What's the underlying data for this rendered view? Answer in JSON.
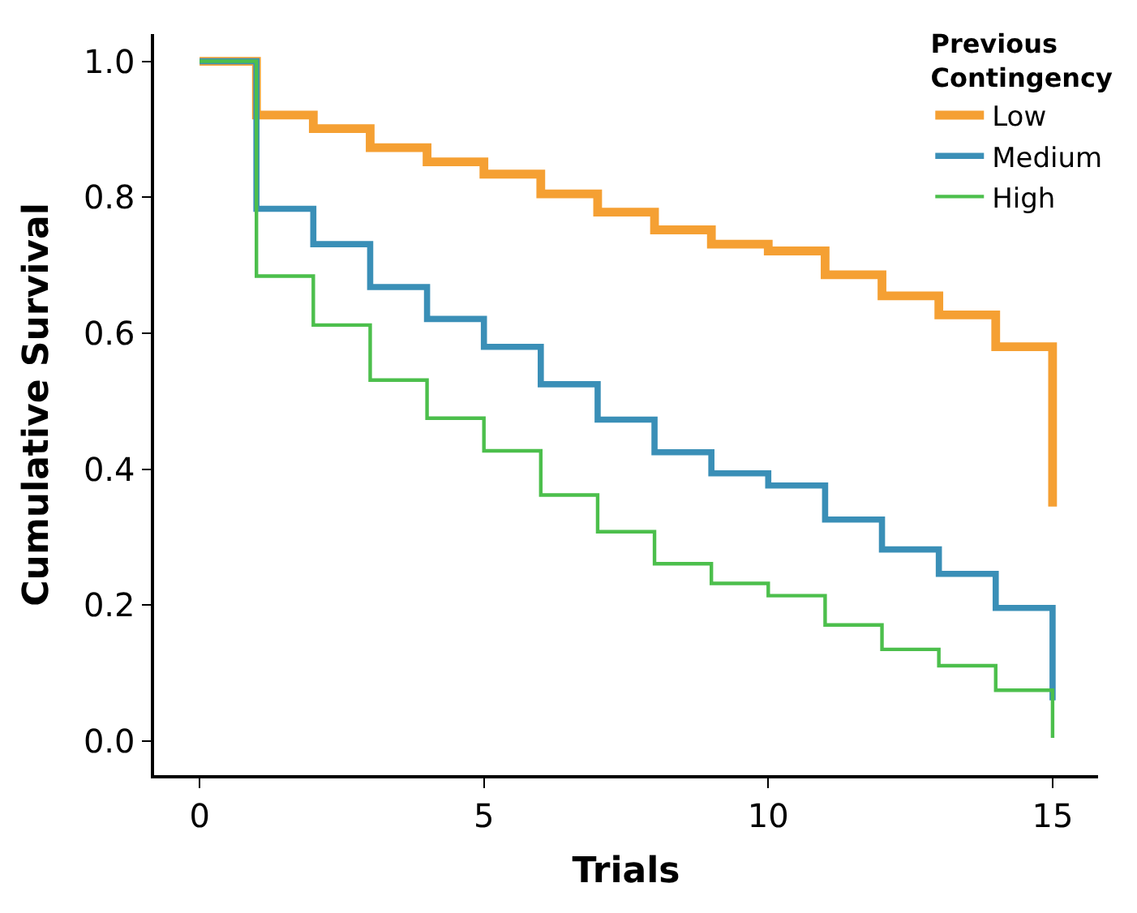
{
  "chart_data": {
    "type": "step",
    "xlabel": "Trials",
    "ylabel": "Cumulative Survival",
    "legend_title": "Previous Contingency",
    "x": [
      0,
      1,
      2,
      3,
      4,
      5,
      6,
      7,
      8,
      9,
      10,
      11,
      12,
      13,
      14,
      15
    ],
    "series": [
      {
        "name": "Low",
        "color": "#f5a033",
        "values": [
          1.0,
          0.921,
          0.901,
          0.873,
          0.852,
          0.834,
          0.805,
          0.778,
          0.752,
          0.731,
          0.721,
          0.686,
          0.655,
          0.627,
          0.58,
          0.345
        ]
      },
      {
        "name": "Medium",
        "color": "#3a8fb7",
        "values": [
          1.0,
          0.783,
          0.731,
          0.668,
          0.621,
          0.58,
          0.525,
          0.473,
          0.425,
          0.394,
          0.376,
          0.326,
          0.282,
          0.246,
          0.196,
          0.06
        ]
      },
      {
        "name": "High",
        "color": "#4cbf4c",
        "values": [
          1.0,
          0.684,
          0.612,
          0.531,
          0.475,
          0.427,
          0.362,
          0.308,
          0.261,
          0.232,
          0.214,
          0.171,
          0.135,
          0.111,
          0.075,
          0.005
        ]
      }
    ],
    "xlim": [
      -0.8,
      15.8
    ],
    "xticks": [
      0,
      5,
      10,
      15
    ],
    "ylim": [
      -0.05,
      1.04
    ],
    "yticks": [
      {
        "value": 0,
        "label": "0.0"
      },
      {
        "value": 0.2,
        "label": "0.2"
      },
      {
        "value": 0.4,
        "label": "0.4"
      },
      {
        "value": 0.6,
        "label": "0.6"
      },
      {
        "value": 0.8,
        "label": "0.8"
      },
      {
        "value": 1,
        "label": "1.0"
      }
    ],
    "legend": "top right",
    "marker": "none",
    "line_style": "solid"
  }
}
